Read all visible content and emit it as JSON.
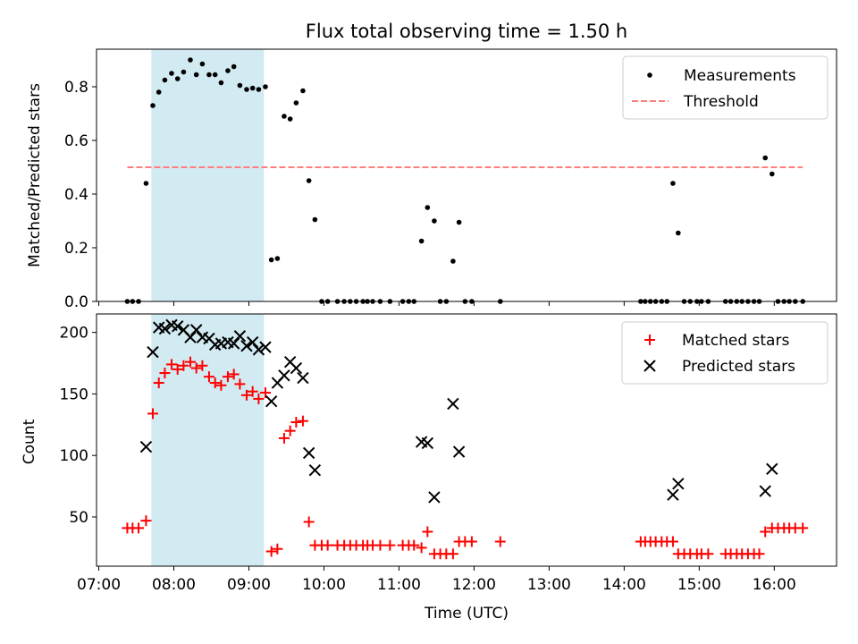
{
  "chart_data": [
    {
      "type": "scatter",
      "title": "Flux total observing time = 1.50 h",
      "xlabel": "",
      "ylabel": "Matched/Predicted stars",
      "xlim": [
        6.97,
        16.83
      ],
      "ylim": [
        0,
        0.94
      ],
      "yticks": [
        0.0,
        0.2,
        0.4,
        0.6,
        0.8
      ],
      "ytick_labels": [
        "0.0",
        "0.2",
        "0.4",
        "0.6",
        "0.8"
      ],
      "highlight_span": [
        7.7,
        9.2
      ],
      "highlight_color": "#add8e6",
      "legend": {
        "position": "top-right",
        "labels": [
          "Measurements",
          "Threshold"
        ]
      },
      "series": [
        {
          "name": "Measurements",
          "marker": "dot",
          "color": "#000000",
          "x": [
            7.38,
            7.45,
            7.53,
            7.63,
            7.72,
            7.8,
            7.88,
            7.97,
            8.05,
            8.13,
            8.22,
            8.3,
            8.38,
            8.47,
            8.55,
            8.63,
            8.72,
            8.8,
            8.88,
            8.97,
            9.05,
            9.13,
            9.22,
            9.3,
            9.38,
            9.47,
            9.55,
            9.63,
            9.72,
            9.8,
            9.88,
            9.97,
            10.05,
            10.18,
            10.27,
            10.35,
            10.43,
            10.52,
            10.58,
            10.65,
            10.75,
            10.88,
            11.05,
            11.13,
            11.2,
            11.3,
            11.38,
            11.47,
            11.55,
            11.63,
            11.72,
            11.8,
            11.88,
            11.97,
            12.35,
            14.22,
            14.28,
            14.35,
            14.42,
            14.5,
            14.57,
            14.65,
            14.72,
            14.8,
            14.88,
            14.97,
            15.03,
            15.12,
            15.35,
            15.42,
            15.5,
            15.57,
            15.65,
            15.73,
            15.8,
            15.88,
            15.97,
            16.05,
            16.13,
            16.2,
            16.28,
            16.38
          ],
          "y": [
            0.0,
            0.0,
            0.0,
            0.44,
            0.73,
            0.78,
            0.825,
            0.85,
            0.83,
            0.855,
            0.9,
            0.845,
            0.885,
            0.845,
            0.845,
            0.815,
            0.86,
            0.875,
            0.805,
            0.79,
            0.795,
            0.79,
            0.8,
            0.155,
            0.16,
            0.69,
            0.68,
            0.74,
            0.785,
            0.45,
            0.305,
            0.0,
            0.0,
            0.0,
            0.0,
            0.0,
            0.0,
            0.0,
            0.0,
            0.0,
            0.0,
            0.0,
            0.0,
            0.0,
            0.0,
            0.225,
            0.35,
            0.3,
            0.0,
            0.0,
            0.15,
            0.295,
            0.0,
            0.0,
            0.0,
            0.0,
            0.0,
            0.0,
            0.0,
            0.0,
            0.0,
            0.44,
            0.255,
            0.0,
            0.0,
            0.0,
            0.0,
            0.0,
            0.0,
            0.0,
            0.0,
            0.0,
            0.0,
            0.0,
            0.0,
            0.535,
            0.475,
            0.0,
            0.0,
            0.0,
            0.0,
            0.0
          ]
        },
        {
          "name": "Threshold",
          "marker": "dashed-line",
          "color": "#ff7f7f",
          "x": [
            7.38,
            16.38
          ],
          "y": [
            0.5,
            0.5
          ]
        }
      ]
    },
    {
      "type": "scatter",
      "title": "",
      "xlabel": "Time (UTC)",
      "ylabel": "Count",
      "xlim": [
        6.97,
        16.83
      ],
      "ylim": [
        10,
        215
      ],
      "yticks": [
        50,
        100,
        150,
        200
      ],
      "ytick_labels": [
        "50",
        "100",
        "150",
        "200"
      ],
      "xticks": [
        7,
        8,
        9,
        10,
        11,
        12,
        13,
        14,
        15,
        16
      ],
      "xtick_labels": [
        "07:00",
        "08:00",
        "09:00",
        "10:00",
        "11:00",
        "12:00",
        "13:00",
        "14:00",
        "15:00",
        "16:00"
      ],
      "highlight_span": [
        7.7,
        9.2
      ],
      "highlight_color": "#add8e6",
      "legend": {
        "position": "top-right",
        "labels": [
          "Matched stars",
          "Predicted stars"
        ]
      },
      "series": [
        {
          "name": "Matched stars",
          "marker": "plus",
          "color": "#ff0000",
          "x": [
            7.38,
            7.45,
            7.53,
            7.63,
            7.72,
            7.8,
            7.88,
            7.97,
            8.05,
            8.13,
            8.22,
            8.3,
            8.38,
            8.47,
            8.55,
            8.63,
            8.72,
            8.8,
            8.88,
            8.97,
            9.05,
            9.13,
            9.22,
            9.3,
            9.38,
            9.47,
            9.55,
            9.63,
            9.72,
            9.8,
            9.88,
            9.97,
            10.05,
            10.18,
            10.27,
            10.35,
            10.43,
            10.52,
            10.58,
            10.65,
            10.75,
            10.88,
            11.05,
            11.13,
            11.2,
            11.3,
            11.38,
            11.47,
            11.55,
            11.63,
            11.72,
            11.8,
            11.88,
            11.97,
            12.35,
            14.22,
            14.28,
            14.35,
            14.42,
            14.5,
            14.57,
            14.65,
            14.72,
            14.8,
            14.88,
            14.97,
            15.03,
            15.12,
            15.35,
            15.42,
            15.5,
            15.57,
            15.65,
            15.73,
            15.8,
            15.88,
            15.97,
            16.05,
            16.13,
            16.2,
            16.28,
            16.38
          ],
          "y": [
            41,
            41,
            41,
            47,
            134,
            159,
            167,
            174,
            170,
            173,
            176,
            171,
            173,
            164,
            159,
            157,
            164,
            166,
            158,
            149,
            152,
            146,
            151,
            22,
            24,
            114,
            120,
            127,
            128,
            46,
            27,
            27,
            27,
            27,
            27,
            27,
            27,
            27,
            27,
            27,
            27,
            27,
            27,
            27,
            27,
            25,
            38,
            20,
            20,
            20,
            20,
            30,
            30,
            30,
            30,
            30,
            30,
            30,
            30,
            30,
            30,
            30,
            20,
            20,
            20,
            20,
            20,
            20,
            20,
            20,
            20,
            20,
            20,
            20,
            20,
            38,
            41,
            41,
            41,
            41,
            41,
            41
          ]
        },
        {
          "name": "Predicted stars",
          "marker": "x",
          "color": "#000000",
          "x": [
            7.63,
            7.72,
            7.8,
            7.88,
            7.97,
            8.05,
            8.13,
            8.22,
            8.3,
            8.38,
            8.47,
            8.55,
            8.63,
            8.72,
            8.8,
            8.88,
            8.97,
            9.05,
            9.13,
            9.22,
            9.3,
            9.38,
            9.47,
            9.55,
            9.63,
            9.72,
            9.8,
            9.88,
            11.3,
            11.38,
            11.47,
            11.72,
            11.8,
            14.65,
            14.72,
            15.88,
            15.97
          ],
          "y": [
            107,
            184,
            204,
            203,
            206,
            205,
            202,
            196,
            202,
            196,
            195,
            190,
            191,
            192,
            191,
            197,
            189,
            192,
            186,
            188,
            144,
            159,
            165,
            176,
            171,
            163,
            102,
            88,
            111,
            110,
            66,
            142,
            103,
            68,
            77,
            71,
            89
          ]
        }
      ]
    }
  ]
}
